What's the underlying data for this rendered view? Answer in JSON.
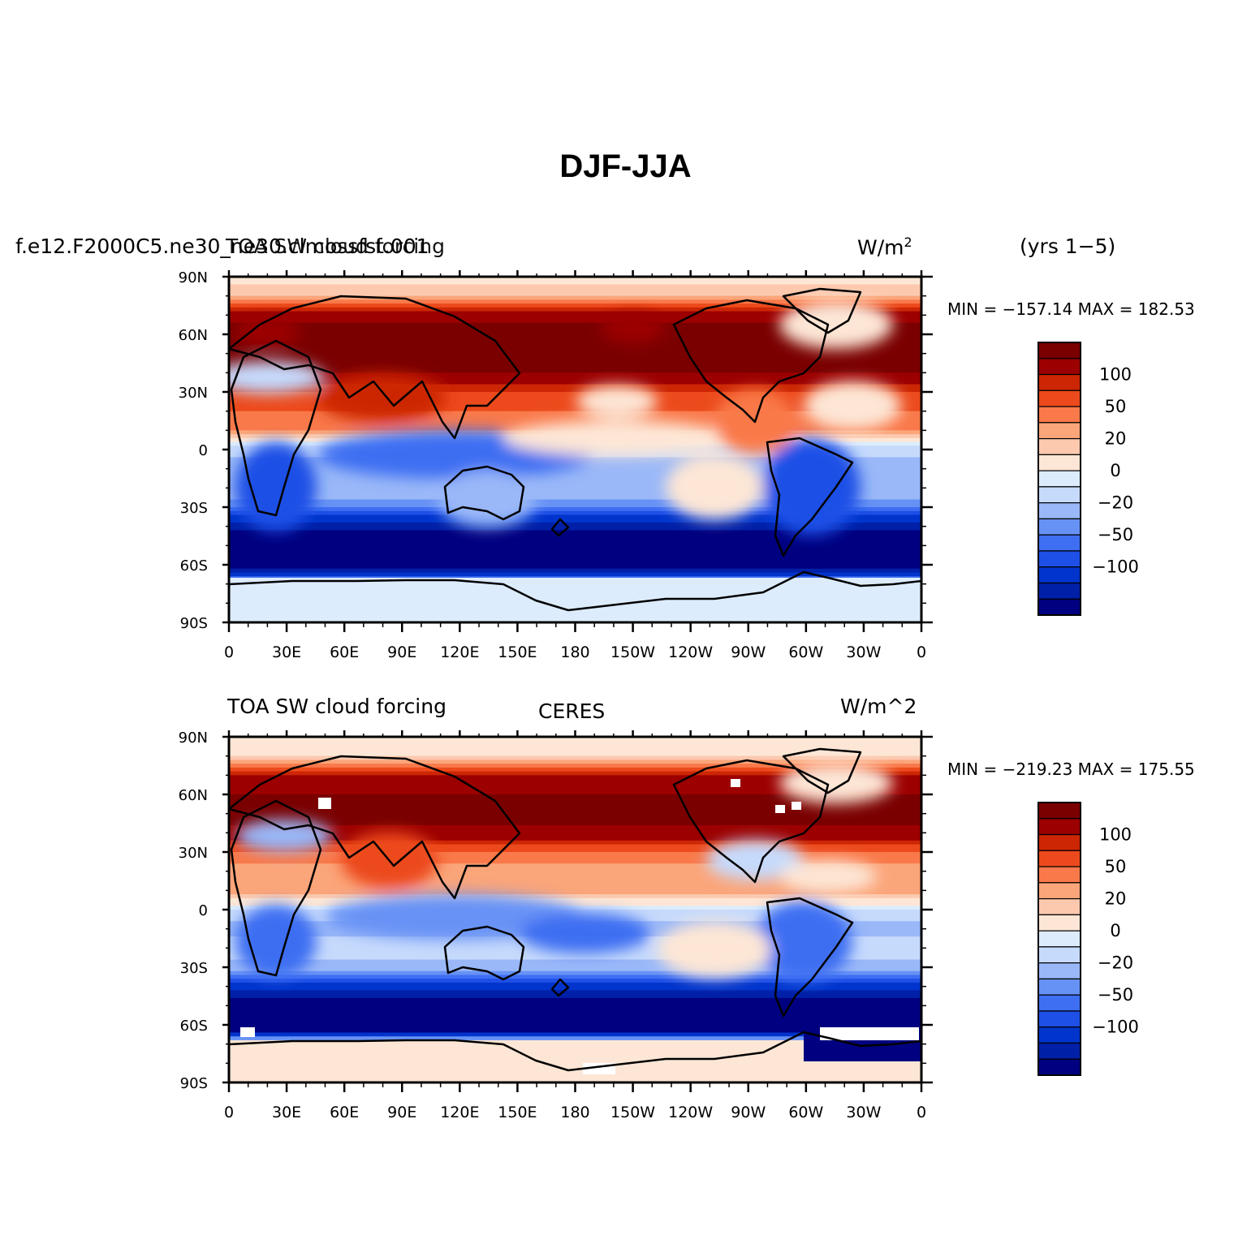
{
  "title": "DJF-JJA",
  "colorbar": {
    "colors": [
      "#000080",
      "#0020a8",
      "#0034cc",
      "#1e4fe6",
      "#3e6ef2",
      "#6792f5",
      "#9ab8f8",
      "#c6dafc",
      "#dcecfd",
      "#fde6d5",
      "#fcc9ae",
      "#fba57a",
      "#f9794a",
      "#ec4a1c",
      "#cc2604",
      "#9c0000",
      "#7a0000"
    ],
    "labels": [
      "-100",
      "-50",
      "-20",
      "0",
      "20",
      "50",
      "100"
    ]
  },
  "axes": {
    "lat_ticks": [
      "90N",
      "60N",
      "30N",
      "0",
      "30S",
      "60S",
      "90S"
    ],
    "lon_ticks": [
      "0",
      "30E",
      "60E",
      "90E",
      "120E",
      "150E",
      "180",
      "150W",
      "120W",
      "90W",
      "60W",
      "30W",
      "0"
    ]
  },
  "panels": [
    {
      "left_label": "f.e12.F2000C5.ne30_ne30.clmossfst.001",
      "center_label": "TOA SW cloud forcing",
      "units_main": "W/m",
      "units_sup": "2",
      "right_label": "(yrs 1−5)",
      "stats": "MIN = −157.14 MAX = 182.53"
    },
    {
      "left_label": "TOA SW cloud forcing",
      "center_label": "CERES",
      "units": "W/m^2",
      "stats": "MIN = −219.23 MAX = 175.55"
    }
  ],
  "chart_data": [
    {
      "type": "heatmap",
      "title": "DJF-JJA",
      "subtitle": "f.e12.F2000C5.ne30_ne30.clmossfst.001",
      "variable": "TOA SW cloud forcing",
      "units": "W/m^2",
      "period": "(yrs 1-5)",
      "min": -157.14,
      "max": 182.53,
      "xlim": [
        0,
        360
      ],
      "ylim": [
        -90,
        90
      ],
      "zonal_mean_profile": {
        "lat": [
          -90,
          -80,
          -70,
          -60,
          -50,
          -40,
          -30,
          -20,
          -10,
          0,
          10,
          20,
          30,
          40,
          50,
          60,
          70,
          80,
          90
        ],
        "value": [
          -5,
          -5,
          -15,
          -110,
          -130,
          -90,
          -40,
          -20,
          -30,
          -15,
          30,
          40,
          50,
          80,
          100,
          90,
          70,
          20,
          5
        ]
      }
    },
    {
      "type": "heatmap",
      "title": "DJF-JJA",
      "subtitle": "CERES",
      "variable": "TOA SW cloud forcing",
      "units": "W/m^2",
      "min": -219.23,
      "max": 175.55,
      "xlim": [
        0,
        360
      ],
      "ylim": [
        -90,
        90
      ],
      "zonal_mean_profile": {
        "lat": [
          -90,
          -80,
          -70,
          -60,
          -50,
          -40,
          -30,
          -20,
          -10,
          0,
          10,
          20,
          30,
          40,
          50,
          60,
          70,
          80,
          90
        ],
        "value": [
          8,
          10,
          25,
          -160,
          -120,
          -70,
          -25,
          -10,
          -30,
          -10,
          25,
          20,
          40,
          70,
          90,
          80,
          60,
          10,
          3
        ]
      }
    }
  ]
}
